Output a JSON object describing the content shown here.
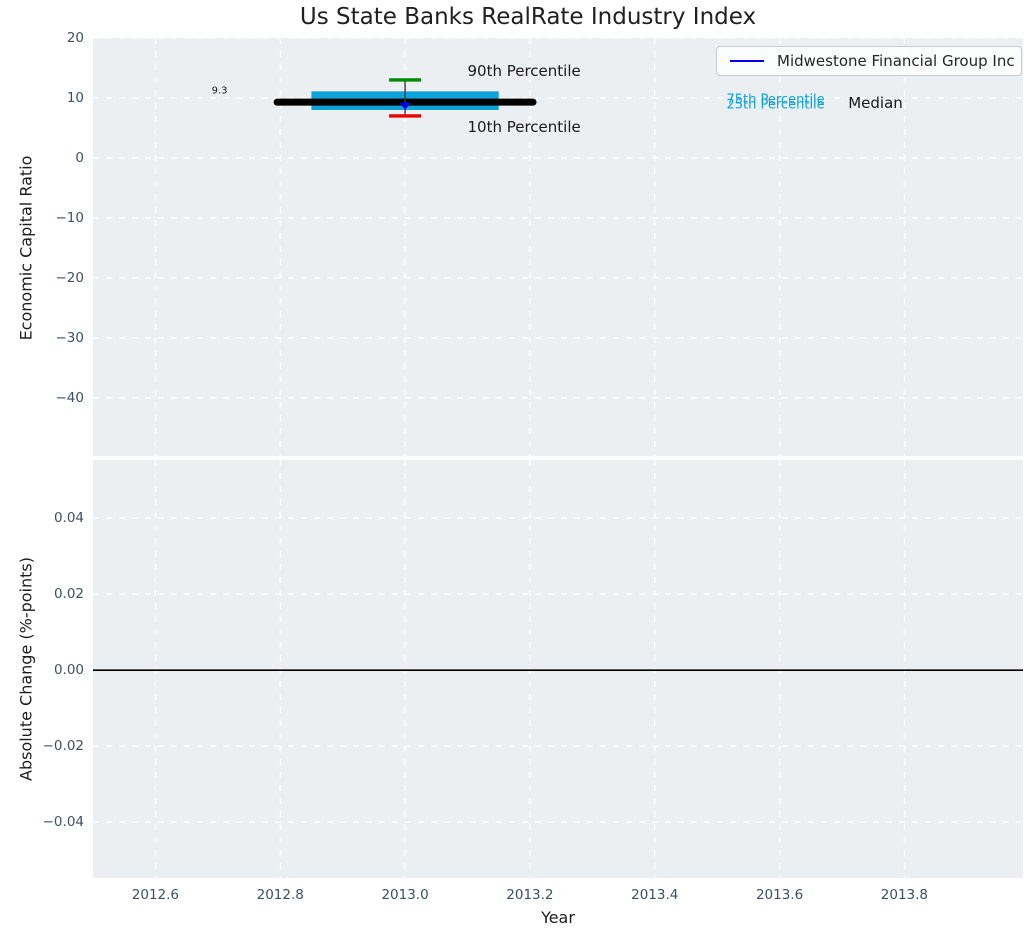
{
  "title": "Us State Banks RealRate Industry Index",
  "legend": {
    "label": "Midwestone Financial Group Inc",
    "line_color": "#0000ee"
  },
  "x_axis": {
    "label": "Year",
    "xlim": [
      2012.5,
      2013.99
    ],
    "ticks": [
      2012.6,
      2012.8,
      2013.0,
      2013.2,
      2013.4,
      2013.6,
      2013.8
    ]
  },
  "chart_data": [
    {
      "type": "errorbar",
      "ylabel": "Economic Capital Ratio",
      "ylim": [
        -49.7,
        20.0
      ],
      "yticks": [
        20,
        10,
        0,
        -10,
        -20,
        -30,
        -40
      ],
      "ytick_decimals": 0,
      "series": [
        {
          "name": "Midwestone Financial Group Inc",
          "x": 2013.0,
          "company_value": 9.3,
          "value_label": "9.3",
          "median": 9.3,
          "p75": 11.1,
          "p25": 8.0,
          "p90": 13.0,
          "p10": 7.0,
          "median_span": [
            2012.795,
            2013.205
          ],
          "band_span": [
            2012.85,
            2013.15
          ]
        }
      ],
      "annotations": [
        {
          "text": "90th Percentile",
          "x": 2013.1,
          "y": 14.5,
          "color": "#1a1a1a",
          "size": 15,
          "name": "annotation-90th-percentile"
        },
        {
          "text": "10th Percentile",
          "x": 2013.1,
          "y": 5.2,
          "color": "#1a1a1a",
          "size": 15,
          "name": "annotation-10th-percentile"
        },
        {
          "text": "75th Percentile",
          "x": 2013.515,
          "y": 9.65,
          "color": "#0da2d9",
          "size": 13,
          "name": "annotation-75th-percentile"
        },
        {
          "text": "25th Percentile",
          "x": 2013.515,
          "y": 8.9,
          "color": "#0da2d9",
          "size": 13,
          "name": "annotation-25th-percentile"
        },
        {
          "text": "Median",
          "x": 2013.71,
          "y": 9.2,
          "color": "#1a1a1a",
          "size": 15,
          "name": "annotation-median"
        },
        {
          "text": "9.3",
          "x": 2012.69,
          "y": 11.2,
          "color": "#1a1a1a",
          "size": 10,
          "name": "annotation-value-label"
        }
      ]
    },
    {
      "type": "line",
      "ylabel": "Absolute Change (%-points)",
      "ylim": [
        -0.0547,
        0.0553
      ],
      "yticks": [
        0.04,
        0.02,
        0.0,
        -0.02,
        -0.04
      ],
      "ytick_decimals": 2,
      "zero_line": 0.0,
      "series": [],
      "annotations": []
    }
  ],
  "colors": {
    "plot_bg": "#ebeff1",
    "grid": "#ffffff",
    "tick_label": "#3f4f63",
    "band": "#0da2d9",
    "median_line": "#000000",
    "p90_cap": "#008b00",
    "p10_cap": "#ee0000",
    "error_line": "#3a3a3a",
    "company_marker": "#0000ee",
    "zero_line": "#000000"
  }
}
